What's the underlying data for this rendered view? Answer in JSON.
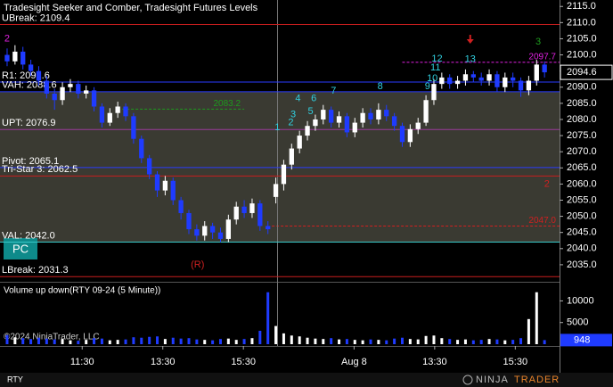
{
  "chart_data": {
    "type": "candlestick",
    "title": "Tradesight Seeker and Comber, Tradesight Futures Levels",
    "instrument": "RTY",
    "button": "PC",
    "copyright": "©2024 NinjaTrader, LLC",
    "logo_left": "NINJA",
    "logo_right": "TRADER",
    "up_color": "#ffffff",
    "down_color": "#1f3bff",
    "ylim": [
      2030,
      2117
    ],
    "yticks": [
      {
        "value": 2035,
        "label": "2035.0"
      },
      {
        "value": 2040,
        "label": "2040.0"
      },
      {
        "value": 2045,
        "label": "2045.0"
      },
      {
        "value": 2050,
        "label": "2050.0"
      },
      {
        "value": 2055,
        "label": "2055.0"
      },
      {
        "value": 2060,
        "label": "2060.0"
      },
      {
        "value": 2065,
        "label": "2065.0"
      },
      {
        "value": 2070,
        "label": "2070.0"
      },
      {
        "value": 2075,
        "label": "2075.0"
      },
      {
        "value": 2080,
        "label": "2080.0"
      },
      {
        "value": 2085,
        "label": "2085.0"
      },
      {
        "value": 2090,
        "label": "2090.0"
      },
      {
        "value": 2095,
        "label": "2095.0"
      },
      {
        "value": 2100,
        "label": "2100.0"
      },
      {
        "value": 2105,
        "label": "2105.0"
      },
      {
        "value": 2110,
        "label": "2110.0"
      },
      {
        "value": 2115,
        "label": "2115.0"
      }
    ],
    "xlim": [
      -0.9,
      69.9
    ],
    "xticks": [
      {
        "value": 9.5,
        "label": "11:30"
      },
      {
        "value": 19.7,
        "label": "13:30"
      },
      {
        "value": 29.9,
        "label": "15:30"
      },
      {
        "value": 43.9,
        "label": "Aug 8"
      },
      {
        "value": 54.1,
        "label": "13:30"
      },
      {
        "value": 64.3,
        "label": "15:30"
      }
    ],
    "open": [
      2100,
      2098,
      2101,
      2097,
      2095,
      2092,
      2088,
      2086,
      2090,
      2091,
      2088,
      2089,
      2084,
      2079,
      2082,
      2084,
      2081,
      2074,
      2068,
      2063,
      2058,
      2061,
      2055,
      2051,
      2046,
      2044,
      2047,
      2045,
      2043,
      2049,
      2053,
      2051,
      2054,
      2047,
      2056,
      2060,
      2066,
      2071,
      2075,
      2078,
      2080,
      2083,
      2079,
      2081,
      2076,
      2079,
      2082,
      2080,
      2083,
      2081,
      2078,
      2073,
      2077,
      2079,
      2086,
      2091,
      2093,
      2091,
      2092,
      2094,
      2093,
      2092,
      2094,
      2090,
      2093,
      2092,
      2089,
      2092,
      2097
    ],
    "high": [
      2102,
      2103,
      2102.5,
      2098.5,
      2096.5,
      2093.5,
      2089.5,
      2091.5,
      2092.5,
      2092,
      2090.5,
      2090,
      2085,
      2083.5,
      2085.5,
      2085,
      2082,
      2075,
      2069,
      2064,
      2062.5,
      2062,
      2056,
      2052,
      2047.5,
      2048.5,
      2048,
      2046.5,
      2050.5,
      2054.5,
      2055,
      2055.5,
      2055,
      2048.5,
      2062,
      2067.5,
      2072.5,
      2076.5,
      2079.5,
      2081.5,
      2084.5,
      2084,
      2082.5,
      2082,
      2080.5,
      2083.5,
      2083.5,
      2085,
      2084.5,
      2082,
      2079,
      2078.5,
      2080.5,
      2087.5,
      2092.5,
      2094.5,
      2094,
      2093.5,
      2095.5,
      2095,
      2094.5,
      2095.5,
      2095,
      2094.5,
      2094.5,
      2093,
      2093.5,
      2098.5,
      2098
    ],
    "low": [
      2096.5,
      2097,
      2095.5,
      2093.5,
      2090.5,
      2086.5,
      2083,
      2084.5,
      2088.5,
      2086.5,
      2086.5,
      2082.5,
      2077.5,
      2078,
      2080.5,
      2079.5,
      2072.5,
      2066.5,
      2061.5,
      2056,
      2056.5,
      2053.5,
      2049,
      2044.5,
      2042.5,
      2042.5,
      2043,
      2042,
      2042,
      2047.5,
      2049.5,
      2049.5,
      2045.5,
      2044.5,
      2054,
      2058,
      2064.5,
      2069.5,
      2073.5,
      2076.5,
      2078.5,
      2077.5,
      2077.5,
      2074.5,
      2074.5,
      2077.5,
      2078.5,
      2078.5,
      2079.5,
      2076.5,
      2071.5,
      2071.5,
      2075.5,
      2078,
      2084.5,
      2089.5,
      2089.5,
      2089.5,
      2090.5,
      2091.5,
      2090.5,
      2090.5,
      2088.5,
      2088.5,
      2090,
      2087,
      2087.5,
      2090.5,
      2093
    ],
    "close": [
      2098,
      2101,
      2097,
      2095,
      2092,
      2088,
      2086,
      2090,
      2091,
      2088,
      2089,
      2084,
      2079,
      2082,
      2084,
      2081,
      2074,
      2068,
      2063,
      2058,
      2061,
      2055,
      2051,
      2046,
      2044,
      2047,
      2045,
      2043,
      2049,
      2053,
      2051,
      2054,
      2047,
      2046,
      2060,
      2066,
      2071,
      2075,
      2078,
      2080,
      2083,
      2079,
      2081,
      2076,
      2079,
      2082,
      2080,
      2083,
      2081,
      2078,
      2073,
      2077,
      2079,
      2086,
      2091,
      2093,
      2091,
      2092,
      2094,
      2093,
      2092,
      2094,
      2090,
      2093,
      2092,
      2089,
      2092,
      2097,
      2094.6
    ],
    "levels": [
      {
        "label": "UBreak: 2109.4",
        "value": 2109.4,
        "color": "#c81e1e"
      },
      {
        "label": "R1: 2091.6",
        "value": 2091.6,
        "color": "#2a3cff"
      },
      {
        "label": "VAH: 2088.6",
        "value": 2088.6,
        "color": "#2a3cff"
      },
      {
        "label": "UPT: 2076.9",
        "value": 2076.9,
        "color": "#9a3a9a"
      },
      {
        "label": "Pivot: 2065.1",
        "value": 2065.1,
        "color": "#2a3cff"
      },
      {
        "label": "Tri-Star 3: 2062.5",
        "value": 2062.5,
        "color": "#c81e1e"
      },
      {
        "label": "VAL: 2042.0",
        "value": 2042.0,
        "color": "#38c8c8"
      },
      {
        "label": "LBreak: 2031.3",
        "value": 2031.3,
        "color": "#c81e1e"
      }
    ],
    "lines": [
      {
        "label": "2097.7",
        "value": 2097.7,
        "from": 50,
        "to": 69.9,
        "color": "#e020e0"
      },
      {
        "label": "2083.2",
        "value": 2083.2,
        "from": 14,
        "to": 30,
        "color": "#1e9a1e"
      },
      {
        "label": "2047.0",
        "value": 2047.0,
        "from": 33.5,
        "to": 69.9,
        "color": "#d02020"
      }
    ],
    "annotations": [
      {
        "text": "2",
        "x": 0,
        "y": 2105,
        "color": "#e020e0"
      },
      {
        "text": "1",
        "x": 34.2,
        "y": 2077.5,
        "color": "#30d0e0"
      },
      {
        "text": "2",
        "x": 35.9,
        "y": 2079,
        "color": "#30d0e0"
      },
      {
        "text": "3",
        "x": 36.2,
        "y": 2081.5,
        "color": "#30d0e0"
      },
      {
        "text": "4",
        "x": 36.8,
        "y": 2086.5,
        "color": "#30d0e0"
      },
      {
        "text": "5",
        "x": 38.4,
        "y": 2082.4,
        "color": "#30d0e0"
      },
      {
        "text": "6",
        "x": 38.8,
        "y": 2086.4,
        "color": "#30d0e0"
      },
      {
        "text": "7",
        "x": 41.3,
        "y": 2088.8,
        "color": "#30d0e0"
      },
      {
        "text": "8",
        "x": 47.2,
        "y": 2090.2,
        "color": "#30d0e0"
      },
      {
        "text": "9",
        "x": 53.2,
        "y": 2090.2,
        "color": "#30d0e0"
      },
      {
        "text": "10",
        "x": 53.8,
        "y": 2092.7,
        "color": "#30d0e0"
      },
      {
        "text": "11",
        "x": 54.2,
        "y": 2096,
        "color": "#30d0e0"
      },
      {
        "text": "12",
        "x": 54.4,
        "y": 2098.8,
        "color": "#30d0e0"
      },
      {
        "text": "13",
        "x": 58.6,
        "y": 2098.6,
        "color": "#30d0e0"
      },
      {
        "text": "3",
        "x": 67.2,
        "y": 2104,
        "color": "#1e9a1e"
      },
      {
        "text": "(R)",
        "x": 24.1,
        "y": 2035,
        "color": "#d02020"
      },
      {
        "text": "2",
        "x": 68.3,
        "y": 2060,
        "color": "#d02020"
      }
    ],
    "volume_panel": {
      "title": "Volume up down(RTY 09-24 (5 Minute))",
      "ylim": [
        0,
        14000
      ],
      "yticks": [
        5000,
        10000
      ]
    },
    "volume": [
      2100,
      1600,
      1400,
      1200,
      1500,
      1300,
      1100,
      1200,
      900,
      800,
      1000,
      1400,
      1300,
      900,
      1000,
      1100,
      1600,
      1500,
      1700,
      1800,
      1200,
      1500,
      1300,
      1400,
      1100,
      1000,
      900,
      1200,
      1300,
      1000,
      1200,
      1400,
      3100,
      12000,
      4200,
      2500,
      2000,
      1800,
      1500,
      1300,
      1200,
      1400,
      1100,
      1200,
      1000,
      900,
      1100,
      1000,
      900,
      1300,
      1500,
      1200,
      1100,
      1900,
      2000,
      1400,
      1200,
      1000,
      1100,
      900,
      1000,
      1200,
      1100,
      900,
      1000,
      1400,
      5800,
      12000,
      948
    ]
  }
}
